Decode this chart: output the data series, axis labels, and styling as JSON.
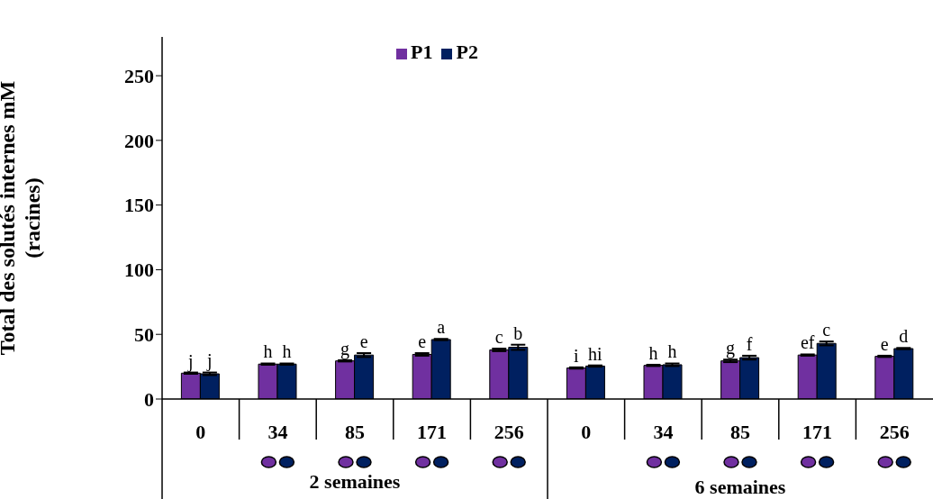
{
  "chart_data": {
    "type": "bar",
    "ylabel": "Total des solutés internes mM (racines)",
    "categories": [
      "0",
      "34",
      "85",
      "171",
      "256",
      "0",
      "34",
      "85",
      "171",
      "256"
    ],
    "series": [
      {
        "name": "P1",
        "color": "#7030a0",
        "values": [
          20,
          27,
          29.5,
          34.5,
          38,
          24,
          26,
          29.5,
          34,
          33
        ],
        "errors": [
          0.5,
          0.5,
          0.5,
          1,
          1,
          0.5,
          0.5,
          1,
          0.5,
          0.5
        ],
        "value_labels": [
          "j",
          "h",
          "g",
          "e",
          "c",
          "i",
          "h",
          "g",
          "ef",
          "e"
        ]
      },
      {
        "name": "P2",
        "color": "#002060",
        "values": [
          19.5,
          27,
          34,
          46,
          40,
          25.5,
          26.5,
          32,
          43,
          39
        ],
        "errors": [
          1,
          0.5,
          1.5,
          0.5,
          2,
          0.5,
          1,
          1.5,
          1.5,
          0.5
        ],
        "value_labels": [
          "j",
          "h",
          "e",
          "a",
          "b",
          "hi",
          "h",
          "f",
          "c",
          "d"
        ]
      }
    ],
    "ylim": [
      0,
      280
    ],
    "yticks": [
      0,
      50,
      100,
      150,
      200,
      250
    ],
    "grid": false,
    "legend": "top",
    "annotations": [
      "2 semaines",
      "6 semaines"
    ]
  }
}
